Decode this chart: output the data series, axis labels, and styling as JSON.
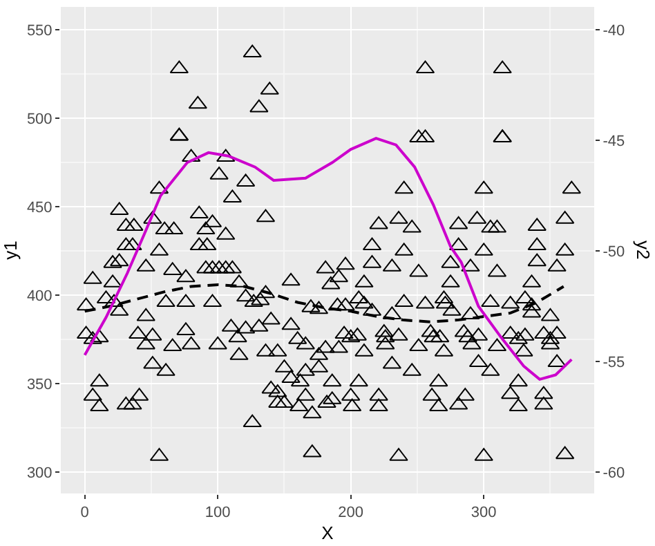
{
  "chart_data": {
    "type": "scatter",
    "xlabel": "X",
    "ylabel": "y1",
    "y2label": "y2",
    "marker": "triangle",
    "grid": true,
    "xlim": [
      -18,
      383
    ],
    "xticks": [
      0,
      100,
      200,
      300
    ],
    "ylim": [
      288,
      563
    ],
    "yticks": [
      300,
      350,
      400,
      450,
      500,
      550
    ],
    "y2lim": [
      -60.96,
      -38.96
    ],
    "y2ticks": [
      -60,
      -55,
      -50,
      -45,
      -40
    ],
    "series": [
      {
        "color": "#000000",
        "x": [
          126,
          71,
          139,
          131,
          85,
          71,
          71,
          80,
          106,
          101,
          121,
          111,
          56,
          136,
          86,
          96,
          91,
          106,
          86,
          92,
          26,
          31,
          37,
          51,
          60,
          67,
          31,
          36,
          56,
          21,
          26,
          46,
          66,
          76,
          91,
          96,
          101,
          106,
          111,
          6,
          21,
          116,
          1,
          16,
          22,
          26,
          61,
          76,
          96,
          121,
          127,
          132,
          136,
          46,
          110,
          121,
          131,
          140,
          1,
          6,
          11,
          40,
          51,
          46,
          76,
          66,
          80,
          100,
          115,
          116,
          136,
          51,
          61,
          11,
          6,
          11,
          31,
          36,
          41,
          140,
          126,
          56,
          181,
          196,
          191,
          185,
          216,
          210,
          231,
          251,
          290,
          310,
          275,
          155,
          206,
          210,
          240,
          256,
          270,
          271,
          276,
          305,
          170,
          176,
          190,
          196,
          216,
          231,
          290,
          155,
          195,
          200,
          205,
          225,
          226,
          236,
          260,
          262,
          267,
          285,
          288,
          296,
          160,
          166,
          145,
          181,
          176,
          191,
          210,
          226,
          251,
          270,
          310,
          291,
          176,
          150,
          166,
          155,
          162,
          186,
          206,
          231,
          246,
          266,
          296,
          305,
          145,
          145,
          150,
          166,
          161,
          182,
          186,
          200,
          201,
          221,
          221,
          171,
          261,
          266,
          286,
          281,
          171,
          236,
          300,
          256,
          314,
          251,
          256,
          314,
          314,
          240,
          300,
          221,
          236,
          246,
          281,
          295,
          305,
          310,
          216,
          240,
          281,
          300,
          275,
          366,
          361,
          340,
          340,
          340,
          361,
          355,
          336,
          320,
          331,
          336,
          336,
          350,
          320,
          326,
          331,
          345,
          350,
          355,
          350,
          330,
          355,
          326,
          320,
          326,
          345,
          345,
          361
        ],
        "values": [
          537,
          528,
          516,
          506,
          508,
          490,
          490,
          478,
          478,
          468,
          464,
          455,
          460,
          444,
          446,
          441,
          437,
          434,
          428,
          428,
          448,
          439,
          439,
          443,
          437,
          437,
          428,
          428,
          425,
          418,
          419,
          416,
          414,
          410,
          415,
          415,
          415,
          415,
          415,
          409,
          407,
          407,
          394,
          398,
          396,
          391,
          396,
          396,
          396,
          399,
          396,
          397,
          401,
          388,
          382,
          381,
          382,
          386,
          378,
          375,
          376,
          378,
          377,
          372,
          380,
          371,
          372,
          372,
          376,
          366,
          368,
          361,
          357,
          351,
          343,
          337,
          338,
          338,
          343,
          347,
          328,
          309,
          415,
          417,
          410,
          406,
          418,
          407,
          416,
          413,
          416,
          413,
          407,
          408,
          398,
          395,
          396,
          395,
          398,
          395,
          391,
          396,
          393,
          392,
          394,
          394,
          391,
          389,
          389,
          383,
          378,
          376,
          377,
          379,
          376,
          377,
          379,
          376,
          376,
          379,
          376,
          377,
          375,
          372,
          368,
          370,
          366,
          370,
          368,
          372,
          371,
          368,
          371,
          372,
          359,
          359,
          357,
          353,
          351,
          351,
          351,
          361,
          357,
          351,
          362,
          357,
          345,
          339,
          339,
          343,
          337,
          339,
          341,
          343,
          337,
          343,
          337,
          333,
          343,
          337,
          343,
          338,
          311,
          309,
          309,
          528,
          528,
          489,
          489,
          489,
          489,
          460,
          460,
          440,
          443,
          438,
          440,
          443,
          438,
          438,
          428,
          425,
          428,
          425,
          418,
          460,
          443,
          439,
          428,
          419,
          425,
          416,
          407,
          395,
          398,
          394,
          390,
          388,
          378,
          375,
          377,
          378,
          375,
          378,
          372,
          368,
          362,
          351,
          344,
          337,
          344,
          338,
          310
        ]
      },
      {
        "type": "line",
        "color": "#000000",
        "marker": "none",
        "line_style": "dashed",
        "x": [
          0,
          20,
          40,
          60,
          80,
          100,
          120,
          140,
          160,
          180,
          200,
          220,
          240,
          260,
          280,
          300,
          320,
          340,
          360
        ],
        "values": [
          391,
          394,
          398,
          402,
          405,
          406,
          405,
          401,
          396,
          393,
          391,
          388,
          386,
          385,
          386,
          388,
          390,
          396,
          405
        ]
      },
      {
        "type": "line",
        "axis": "y2",
        "color": "#cc00cc",
        "marker": "none",
        "line_style": "solid",
        "x": [
          0,
          16,
          32,
          45,
          57,
          77,
          93,
          108,
          128,
          142,
          166,
          186,
          200,
          219,
          234,
          248,
          262,
          275,
          283,
          296,
          313,
          330,
          342,
          354,
          366
        ],
        "values": [
          -54.7,
          -53.0,
          -51.0,
          -49.2,
          -47.5,
          -46.0,
          -45.55,
          -45.7,
          -46.2,
          -46.8,
          -46.7,
          -46.0,
          -45.4,
          -44.9,
          -45.2,
          -46.2,
          -47.9,
          -49.8,
          -50.5,
          -52.5,
          -53.9,
          -55.2,
          -55.8,
          -55.6,
          -54.9
        ]
      }
    ]
  }
}
